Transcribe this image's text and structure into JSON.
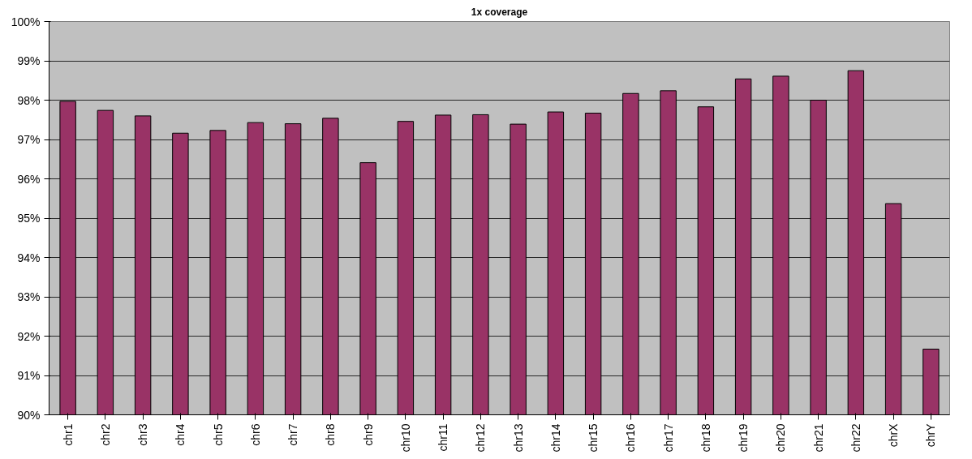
{
  "chart_data": {
    "type": "bar",
    "title": "1x coverage",
    "categories": [
      "chr1",
      "chr2",
      "chr3",
      "chr4",
      "chr5",
      "chr6",
      "chr7",
      "chr8",
      "chr9",
      "chr10",
      "chr11",
      "chr12",
      "chr13",
      "chr14",
      "chr15",
      "chr16",
      "chr17",
      "chr18",
      "chr19",
      "chr20",
      "chr21",
      "chr22",
      "chrX",
      "chrY"
    ],
    "values": [
      97.97,
      97.74,
      97.6,
      97.16,
      97.23,
      97.43,
      97.4,
      97.54,
      96.41,
      97.46,
      97.62,
      97.63,
      97.39,
      97.7,
      97.67,
      98.17,
      98.24,
      97.83,
      98.54,
      98.61,
      98.0,
      98.75,
      95.37,
      91.67
    ],
    "color": "#993366",
    "ylim": [
      90,
      100
    ],
    "yticks": [
      {
        "value": 90,
        "label": "90%"
      },
      {
        "value": 91,
        "label": "91%"
      },
      {
        "value": 92,
        "label": "92%"
      },
      {
        "value": 93,
        "label": "93%"
      },
      {
        "value": 94,
        "label": "94%"
      },
      {
        "value": 95,
        "label": "95%"
      },
      {
        "value": 96,
        "label": "96%"
      },
      {
        "value": 97,
        "label": "97%"
      },
      {
        "value": 98,
        "label": "98%"
      },
      {
        "value": 99,
        "label": "99%"
      },
      {
        "value": 100,
        "label": "100%"
      }
    ],
    "grid": "y"
  }
}
